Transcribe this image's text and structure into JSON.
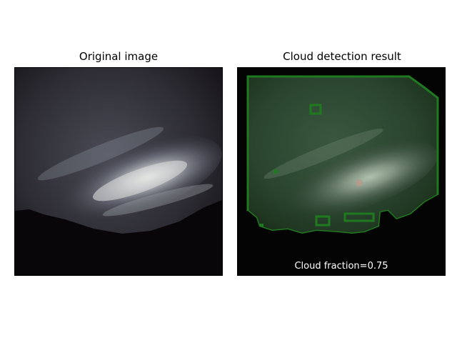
{
  "panels": [
    {
      "title": "Original image"
    },
    {
      "title": "Cloud detection result",
      "caption": "Cloud fraction=0.75"
    }
  ],
  "colors": {
    "background": "#ffffff",
    "sky_dark": "#1c1a1f",
    "ground": "#050405",
    "cloud_mask_fill": "#2f8a2f",
    "cloud_mask_edge": "#1f7a1f"
  },
  "cloud_fraction": 0.75
}
